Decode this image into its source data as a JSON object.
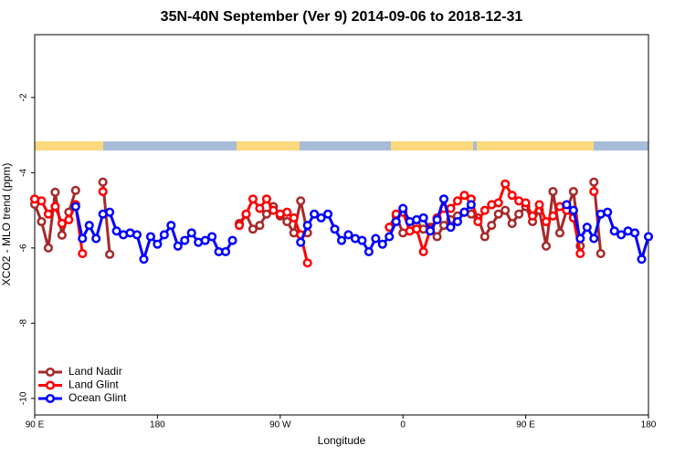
{
  "chart_data": {
    "type": "line",
    "title": "35N-40N September (Ver 9)   2014-09-06 to 2018-12-31",
    "x_label": "Longitude",
    "y_label": "XCO2 - MLO trend (ppm)",
    "xlim": [
      90,
      540
    ],
    "xticks": [
      {
        "value": 90,
        "label": "90 E"
      },
      {
        "value": 180,
        "label": "180"
      },
      {
        "value": 270,
        "label": "90 W"
      },
      {
        "value": 360,
        "label": "0"
      },
      {
        "value": 450,
        "label": "90 E"
      },
      {
        "value": 540,
        "label": "180"
      }
    ],
    "ylim": [
      -10.44,
      -0.33
    ],
    "yticks": [
      -10,
      -8,
      -6,
      -4,
      -2
    ],
    "legend": "bottom-left",
    "x": [
      90,
      95,
      100,
      105,
      110,
      115,
      120,
      125,
      130,
      135,
      140,
      145,
      150,
      155,
      160,
      165,
      170,
      175,
      180,
      185,
      190,
      195,
      200,
      205,
      210,
      215,
      220,
      225,
      230,
      235,
      240,
      245,
      250,
      255,
      260,
      265,
      270,
      275,
      280,
      285,
      290,
      295,
      300,
      305,
      310,
      315,
      320,
      325,
      330,
      335,
      340,
      345,
      350,
      355,
      360,
      365,
      370,
      375,
      380,
      385,
      390,
      395,
      400,
      405,
      410,
      415,
      420,
      425,
      430,
      435,
      440,
      445,
      450,
      455,
      460,
      465,
      470,
      475,
      480,
      485,
      490,
      495,
      500,
      505,
      510,
      515,
      520,
      525,
      530,
      535,
      540
    ],
    "series": [
      {
        "name": "Land Nadir",
        "color": "#a52a2a",
        "values": [
          -4.84,
          -5.3,
          -6.0,
          -4.52,
          -5.66,
          -5.05,
          -4.47,
          null,
          null,
          null,
          -4.25,
          -6.17,
          null,
          null,
          null,
          null,
          null,
          null,
          null,
          null,
          null,
          null,
          null,
          null,
          null,
          null,
          null,
          null,
          null,
          null,
          -5.35,
          -5.1,
          -5.5,
          -5.4,
          -5.1,
          -4.9,
          -5.15,
          -5.3,
          -5.6,
          -4.75,
          -5.6,
          null,
          null,
          null,
          null,
          null,
          null,
          null,
          null,
          null,
          null,
          null,
          null,
          -5.15,
          -5.6,
          -5.55,
          -5.4,
          -5.5,
          -5.45,
          -5.7,
          -5.4,
          -5.25,
          -5.15,
          -5.05,
          -5.1,
          -5.2,
          -5.7,
          -5.4,
          -5.1,
          -5.0,
          -5.35,
          -5.1,
          -4.9,
          -5.3,
          -5.0,
          -5.95,
          -4.5,
          -5.6,
          -5.0,
          -4.5,
          -5.95,
          null,
          -4.25,
          -6.15,
          null,
          null,
          null,
          null,
          null,
          null,
          null
        ]
      },
      {
        "name": "Land Glint",
        "color": "#ff0000",
        "values": [
          -4.7,
          -4.75,
          -5.1,
          -4.9,
          -5.35,
          -5.25,
          -4.85,
          -6.15,
          null,
          null,
          -4.5,
          null,
          null,
          null,
          null,
          null,
          null,
          null,
          null,
          null,
          null,
          null,
          null,
          null,
          null,
          null,
          null,
          null,
          null,
          null,
          -5.4,
          -5.1,
          -4.7,
          -4.95,
          -4.7,
          -5.0,
          -5.1,
          -5.05,
          -5.2,
          -5.65,
          -6.4,
          null,
          null,
          null,
          null,
          null,
          null,
          null,
          null,
          null,
          null,
          null,
          -5.45,
          -5.1,
          -5.05,
          -5.55,
          -5.5,
          -6.1,
          -5.5,
          -5.2,
          -4.95,
          -4.95,
          -4.75,
          -4.6,
          -4.7,
          -5.3,
          -5.0,
          -4.85,
          -4.8,
          -4.3,
          -4.6,
          -4.75,
          -4.8,
          -5.15,
          -4.85,
          -5.3,
          -5.15,
          -4.9,
          -5.0,
          -5.2,
          -6.15,
          null,
          -4.5,
          null,
          null,
          null,
          null,
          null,
          null,
          null,
          null
        ]
      },
      {
        "name": "Ocean Glint",
        "color": "#0000ff",
        "values": [
          null,
          null,
          null,
          null,
          null,
          null,
          -4.9,
          -5.75,
          -5.4,
          -5.75,
          -5.1,
          -5.05,
          -5.55,
          -5.65,
          -5.6,
          -5.65,
          -6.3,
          -5.7,
          -5.9,
          -5.65,
          -5.4,
          -5.95,
          -5.8,
          -5.6,
          -5.85,
          -5.8,
          -5.7,
          -6.1,
          -6.1,
          -5.8,
          null,
          null,
          null,
          null,
          null,
          null,
          null,
          null,
          null,
          -5.85,
          -5.4,
          -5.1,
          -5.2,
          -5.1,
          -5.5,
          -5.8,
          -5.65,
          -5.75,
          -5.8,
          -6.1,
          -5.75,
          -5.9,
          -5.7,
          -5.3,
          -4.95,
          -5.3,
          -5.25,
          -5.2,
          -5.55,
          -5.25,
          -4.7,
          -5.45,
          -5.3,
          -5.05,
          -4.85,
          null,
          null,
          null,
          null,
          null,
          null,
          null,
          null,
          null,
          null,
          null,
          null,
          null,
          -4.85,
          -5.0,
          -5.75,
          -5.45,
          -5.75,
          -5.1,
          -5.05,
          -5.55,
          -5.65,
          -5.55,
          -5.6,
          -6.3,
          -5.7
        ]
      }
    ]
  }
}
